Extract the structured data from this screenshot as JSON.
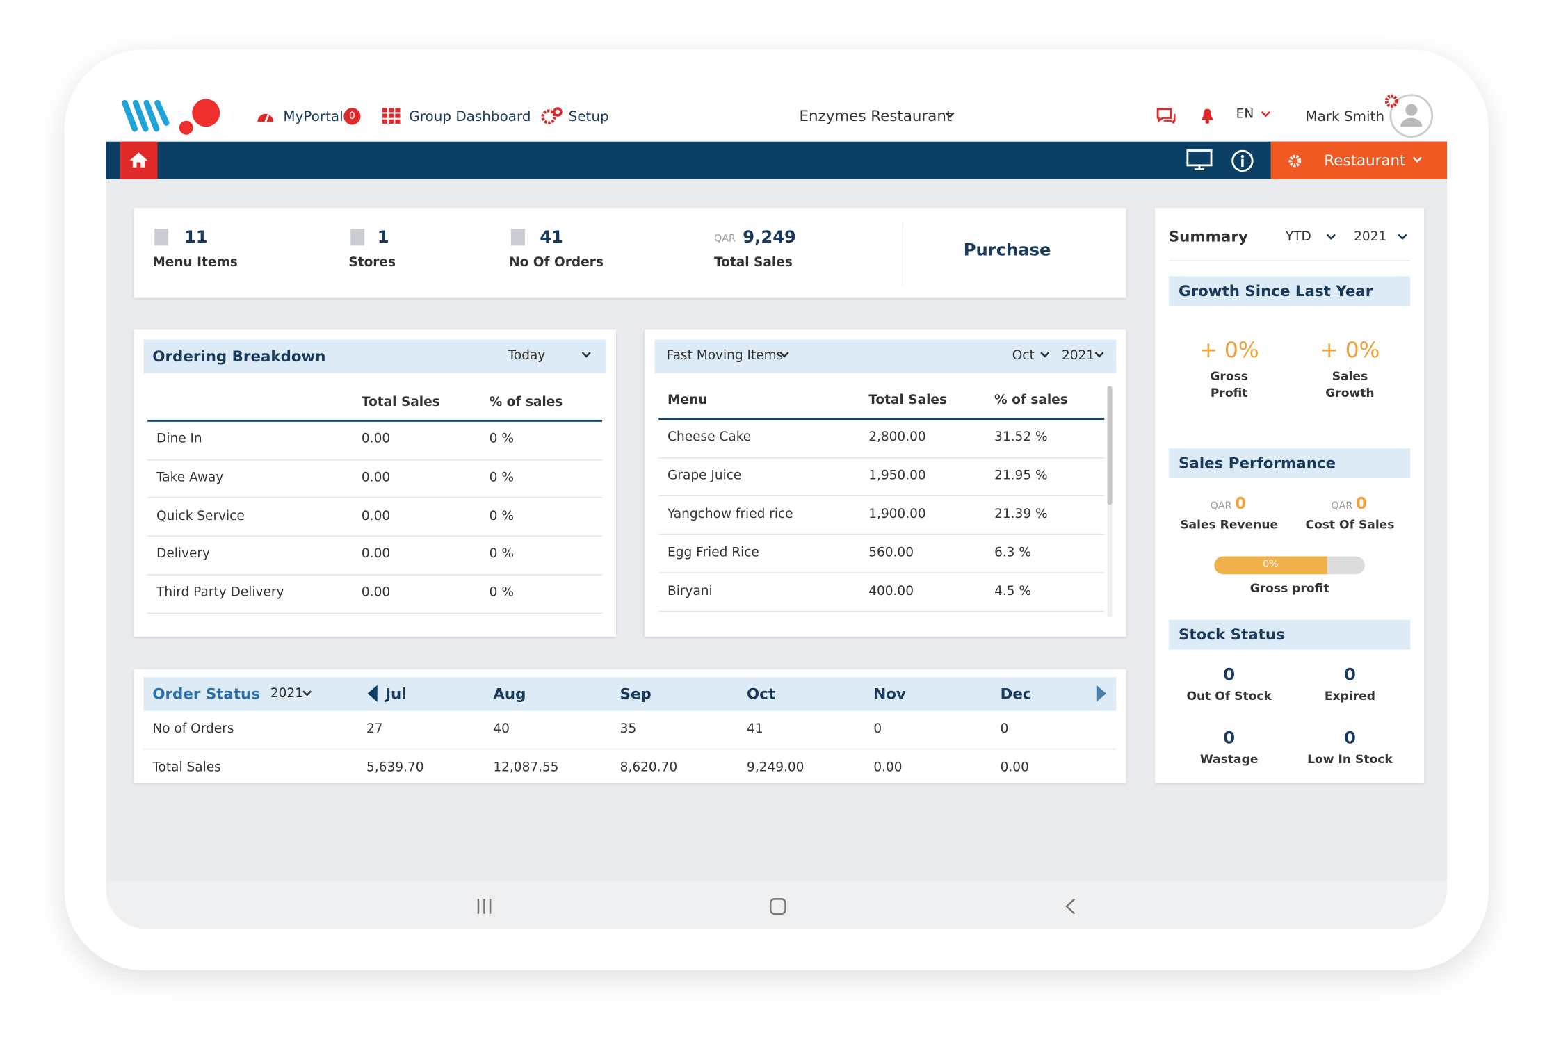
{
  "nav": {
    "portal": "MyPortal",
    "portal_badge": "0",
    "group": "Group Dashboard",
    "setup": "Setup",
    "restaurant": "Enzymes Restaurant",
    "lang": "EN",
    "user": "Mark Smith",
    "role_button": "Restaurant"
  },
  "stats": [
    {
      "value": "11",
      "label": "Menu Items"
    },
    {
      "value": "1",
      "label": "Stores"
    },
    {
      "value": "41",
      "label": "No Of Orders"
    },
    {
      "currency": "QAR",
      "value": "9,249",
      "label": "Total Sales"
    }
  ],
  "purchase": "Purchase",
  "ordering_breakdown": {
    "title": "Ordering Breakdown",
    "period": "Today",
    "columns": [
      "Total Sales",
      "% of sales"
    ],
    "rows": [
      [
        "Dine In",
        "0.00",
        "0 %"
      ],
      [
        "Take Away",
        "0.00",
        "0 %"
      ],
      [
        "Quick Service",
        "0.00",
        "0 %"
      ],
      [
        "Delivery",
        "0.00",
        "0 %"
      ],
      [
        "Third Party Delivery",
        "0.00",
        "0 %"
      ]
    ]
  },
  "fast_moving": {
    "title": "Fast Moving Items",
    "month": "Oct",
    "year": "2021",
    "columns": [
      "Menu",
      "Total Sales",
      "% of sales"
    ],
    "rows": [
      [
        "Cheese Cake",
        "2,800.00",
        "31.52 %"
      ],
      [
        "Grape Juice",
        "1,950.00",
        "21.95 %"
      ],
      [
        "Yangchow fried rice",
        "1,900.00",
        "21.39 %"
      ],
      [
        "Egg Fried Rice",
        "560.00",
        "6.3 %"
      ],
      [
        "Biryani",
        "400.00",
        "4.5 %"
      ]
    ]
  },
  "order_status": {
    "title": "Order Status",
    "year": "2021",
    "months": [
      "Jul",
      "Aug",
      "Sep",
      "Oct",
      "Nov",
      "Dec"
    ],
    "rows": [
      {
        "label": "No of Orders",
        "values": [
          "27",
          "40",
          "35",
          "41",
          "0",
          "0"
        ]
      },
      {
        "label": "Total Sales",
        "values": [
          "5,639.70",
          "12,087.55",
          "8,620.70",
          "9,249.00",
          "0.00",
          "0.00"
        ]
      }
    ]
  },
  "summary": {
    "title": "Summary",
    "period": "YTD",
    "year": "2021",
    "growth": {
      "title": "Growth Since Last Year",
      "items": [
        {
          "value": "+ 0%",
          "label": "Gross Profit"
        },
        {
          "value": "+ 0%",
          "label": "Sales Growth"
        }
      ]
    },
    "sales_performance": {
      "title": "Sales Performance",
      "items": [
        {
          "currency": "QAR",
          "value": "0",
          "label": "Sales Revenue"
        },
        {
          "currency": "QAR",
          "value": "0",
          "label": "Cost Of Sales"
        }
      ],
      "bar_label": "0%",
      "bar_caption": "Gross profit"
    },
    "stock": {
      "title": "Stock Status",
      "items": [
        {
          "value": "0",
          "label": "Out Of Stock"
        },
        {
          "value": "0",
          "label": "Expired"
        },
        {
          "value": "0",
          "label": "Wastage"
        },
        {
          "value": "0",
          "label": "Low In Stock"
        }
      ]
    }
  }
}
